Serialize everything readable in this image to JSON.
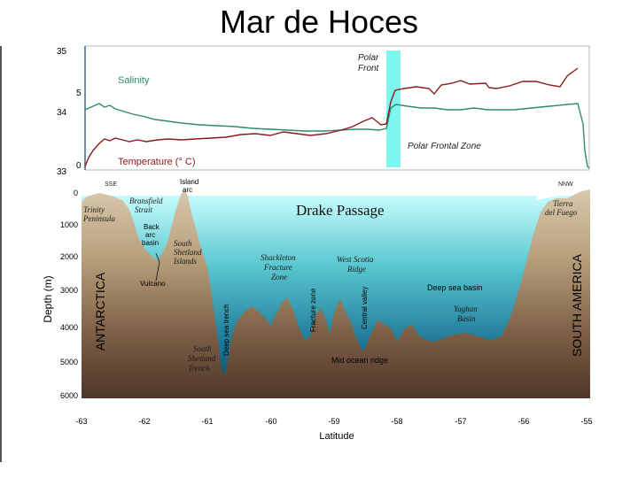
{
  "title": "Mar de Hoces",
  "top_panel": {
    "left_axis_ticks": [
      "35",
      "34",
      "33"
    ],
    "right_axis_ticks": [
      "5",
      "0"
    ],
    "salinity_label": "Salinity",
    "temperature_label": "Temperature (° C)",
    "polar_front_label": [
      "Polar",
      "Front"
    ],
    "polar_frontal_zone_label": "Polar Frontal Zone",
    "colors": {
      "salinity": "#2e8b6e",
      "temperature": "#8b1a1a",
      "polar_front_band": "#7ff5ef"
    }
  },
  "cross_section": {
    "title": "Drake Passage",
    "direction_left": "SSE",
    "direction_right": "NNW",
    "island_arc_label": [
      "Island",
      "arc"
    ],
    "depth_label": "Depth (m)",
    "depth_ticks": [
      "0",
      "1000",
      "2000",
      "3000",
      "4000",
      "5000",
      "6000"
    ],
    "latitude_label": "Latitude",
    "latitude_ticks": [
      "-63",
      "-62",
      "-61",
      "-60",
      "-59",
      "-58",
      "-57",
      "-56",
      "-55"
    ],
    "antarctica_label": "ANTARCTICA",
    "south_america_label": "SOUTH AMERICA",
    "features": {
      "trinity": [
        "Trinity",
        "Peninsula"
      ],
      "bransfield": [
        "Bransfield",
        "Strait"
      ],
      "back_arc": [
        "Back",
        "arc",
        "basin"
      ],
      "south_shetland_islands": [
        "South",
        "Shetland",
        "Islands"
      ],
      "vulcano": "Vulcano",
      "deep_sea_trench": "Deep sea trench",
      "south_shetland_trench": [
        "South",
        "Shetland",
        "Trench"
      ],
      "shackleton": [
        "Shackleton",
        "Fracture",
        "Zone"
      ],
      "fracture_zone": "Fracture zone",
      "west_scotia": [
        "West Scotia",
        "Ridge"
      ],
      "central_valley": "Central valley",
      "deep_sea_basin": "Deep sea basin",
      "yaghan": [
        "Yaghan",
        "Basin"
      ],
      "mid_ocean_ridge": "Mid ocean ridge",
      "tierra_del_fuego": [
        "Tierra",
        "del Fuego"
      ]
    },
    "colors": {
      "water_top": "#b8fbfb",
      "water_bottom": "#0e4f6a",
      "land_top": "#d2c0a2",
      "land_bottom": "#5b4232"
    }
  }
}
